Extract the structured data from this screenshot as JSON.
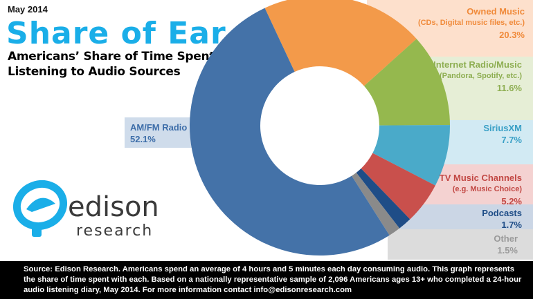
{
  "header": {
    "date": "May 2014",
    "title": "Share of Ear",
    "subtitle_line1": "Americans’ Share of Time Spent",
    "subtitle_line2": "Listening to Audio Sources"
  },
  "chart_data": {
    "type": "pie",
    "donut": true,
    "slices": [
      {
        "name": "Owned Music",
        "detail": "(CDs, Digital music files, etc.)",
        "value": 20.3,
        "label": "20.3%",
        "color": "#f39a4a",
        "band": "#fde0cc"
      },
      {
        "name": "Internet Radio/Music",
        "detail": "(Pandora, Spotify, etc.)",
        "value": 11.6,
        "label": "11.6%",
        "color": "#95b84e",
        "band": "#e6eed6"
      },
      {
        "name": "SiriusXM",
        "detail": "",
        "value": 7.7,
        "label": "7.7%",
        "color": "#4aaac9",
        "band": "#d2eaf3"
      },
      {
        "name": "TV Music Channels",
        "detail": "(e.g. Music Choice)",
        "value": 5.2,
        "label": "5.2%",
        "color": "#c9504c",
        "band": "#f4d2d1"
      },
      {
        "name": "Podcasts",
        "detail": "",
        "value": 1.7,
        "label": "1.7%",
        "color": "#1f4d87",
        "band": "#cbd6e5"
      },
      {
        "name": "Other",
        "detail": "",
        "value": 1.5,
        "label": "1.5%",
        "color": "#8a8a8a",
        "band": "#dcdcdc"
      },
      {
        "name": "AM/FM Radio",
        "detail": "",
        "value": 52.1,
        "label": "52.1%",
        "color": "#4472a8",
        "band": "#cfdceb"
      }
    ]
  },
  "logo": {
    "name": "edison",
    "tagline": "research"
  },
  "footer": {
    "text": "Source: Edison Research.  Americans spend an average of 4 hours and 5 minutes each day consuming audio.  This graph represents the share of time spent with each.  Based on a nationally representative sample of 2,096 Americans ages 13+ who completed a 24-hour audio listening diary, May 2014.  For more information contact info@edisonresearch.com"
  }
}
